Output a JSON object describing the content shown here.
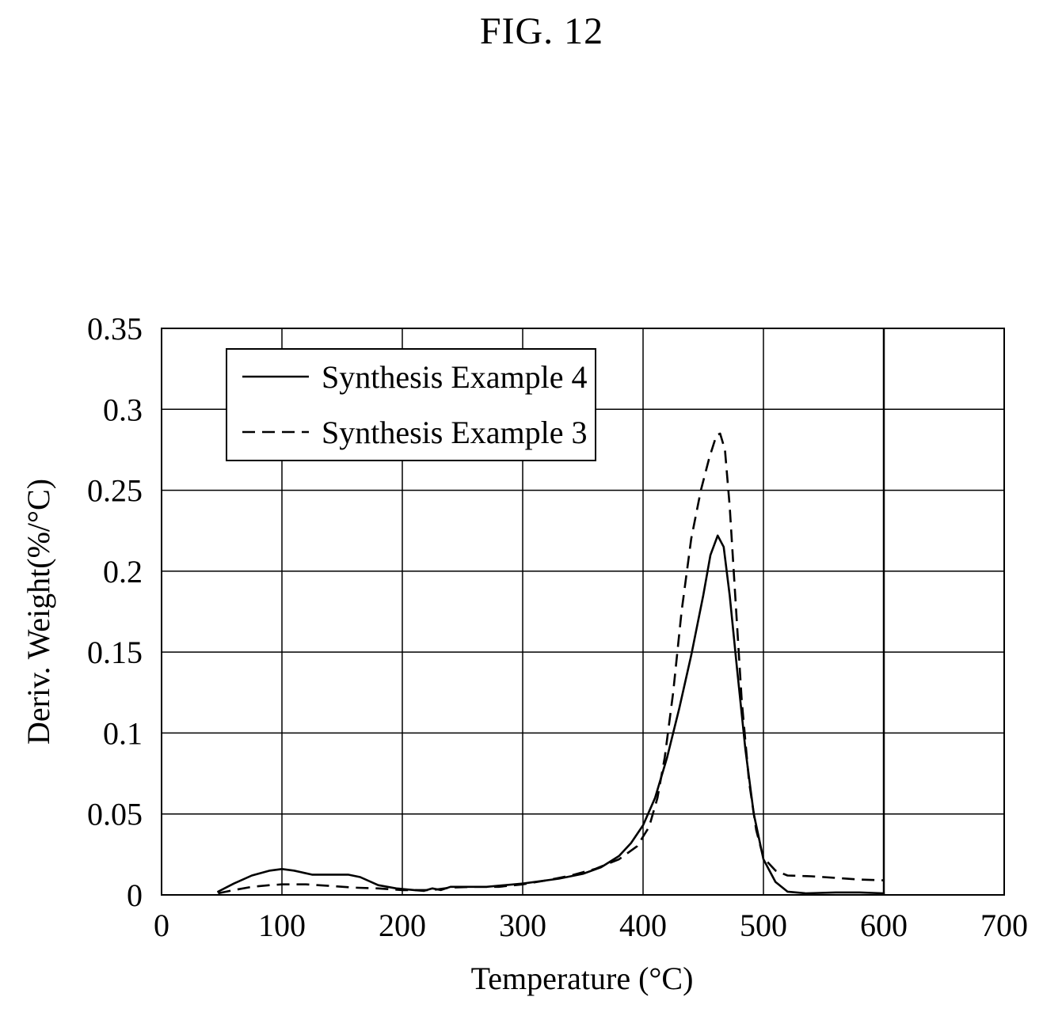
{
  "figure": {
    "title": "FIG. 12"
  },
  "chart_data": {
    "type": "line",
    "title": "",
    "xlabel": "Temperature (°C)",
    "ylabel": "Deriv. Weight(%/°C)",
    "xlim": [
      0,
      700
    ],
    "ylim": [
      0,
      0.35
    ],
    "x_ticks": [
      0,
      100,
      200,
      300,
      400,
      500,
      600,
      700
    ],
    "x_tick_labels": [
      "0",
      "100",
      "200",
      "300",
      "400",
      "500",
      "600",
      "700"
    ],
    "y_ticks": [
      0,
      0.05,
      0.1,
      0.15,
      0.2,
      0.25,
      0.3,
      0.35
    ],
    "y_tick_labels": [
      "0",
      "0.05",
      "0.1",
      "0.15",
      "0.2",
      "0.25",
      "0.3",
      "0.35"
    ],
    "grid": true,
    "legend_position": "top-left",
    "series": [
      {
        "name": "Synthesis Example 4",
        "style": "solid",
        "color": "#000000",
        "points": [
          [
            47,
            0.002
          ],
          [
            60,
            0.007
          ],
          [
            75,
            0.012
          ],
          [
            90,
            0.015
          ],
          [
            100,
            0.016
          ],
          [
            110,
            0.015
          ],
          [
            125,
            0.0125
          ],
          [
            140,
            0.0125
          ],
          [
            155,
            0.0125
          ],
          [
            165,
            0.011
          ],
          [
            180,
            0.006
          ],
          [
            195,
            0.004
          ],
          [
            210,
            0.003
          ],
          [
            218,
            0.0025
          ],
          [
            225,
            0.004
          ],
          [
            232,
            0.003
          ],
          [
            240,
            0.005
          ],
          [
            250,
            0.005
          ],
          [
            270,
            0.005
          ],
          [
            300,
            0.007
          ],
          [
            330,
            0.01
          ],
          [
            350,
            0.013
          ],
          [
            365,
            0.017
          ],
          [
            380,
            0.024
          ],
          [
            390,
            0.032
          ],
          [
            400,
            0.043
          ],
          [
            410,
            0.06
          ],
          [
            420,
            0.085
          ],
          [
            430,
            0.115
          ],
          [
            440,
            0.148
          ],
          [
            450,
            0.185
          ],
          [
            456,
            0.21
          ],
          [
            462,
            0.222
          ],
          [
            467,
            0.215
          ],
          [
            472,
            0.185
          ],
          [
            478,
            0.14
          ],
          [
            485,
            0.09
          ],
          [
            492,
            0.05
          ],
          [
            500,
            0.022
          ],
          [
            510,
            0.008
          ],
          [
            520,
            0.002
          ],
          [
            535,
            0.001
          ],
          [
            560,
            0.0015
          ],
          [
            580,
            0.0015
          ],
          [
            600,
            0.001
          ]
        ]
      },
      {
        "name": "Synthesis Example 3",
        "style": "dashed",
        "color": "#000000",
        "points": [
          [
            47,
            0.001
          ],
          [
            60,
            0.003
          ],
          [
            75,
            0.005
          ],
          [
            90,
            0.006
          ],
          [
            100,
            0.0065
          ],
          [
            120,
            0.0065
          ],
          [
            140,
            0.0055
          ],
          [
            160,
            0.0045
          ],
          [
            180,
            0.004
          ],
          [
            200,
            0.003
          ],
          [
            215,
            0.003
          ],
          [
            225,
            0.003
          ],
          [
            240,
            0.0045
          ],
          [
            260,
            0.005
          ],
          [
            280,
            0.005
          ],
          [
            300,
            0.0065
          ],
          [
            320,
            0.009
          ],
          [
            340,
            0.012
          ],
          [
            360,
            0.016
          ],
          [
            380,
            0.022
          ],
          [
            395,
            0.03
          ],
          [
            405,
            0.042
          ],
          [
            412,
            0.06
          ],
          [
            418,
            0.085
          ],
          [
            425,
            0.125
          ],
          [
            432,
            0.175
          ],
          [
            440,
            0.22
          ],
          [
            448,
            0.25
          ],
          [
            455,
            0.27
          ],
          [
            461,
            0.284
          ],
          [
            464,
            0.285
          ],
          [
            468,
            0.275
          ],
          [
            472,
            0.24
          ],
          [
            477,
            0.18
          ],
          [
            482,
            0.12
          ],
          [
            488,
            0.07
          ],
          [
            494,
            0.04
          ],
          [
            500,
            0.023
          ],
          [
            510,
            0.015
          ],
          [
            520,
            0.012
          ],
          [
            540,
            0.0115
          ],
          [
            560,
            0.0105
          ],
          [
            580,
            0.0095
          ],
          [
            600,
            0.009
          ]
        ]
      }
    ]
  }
}
